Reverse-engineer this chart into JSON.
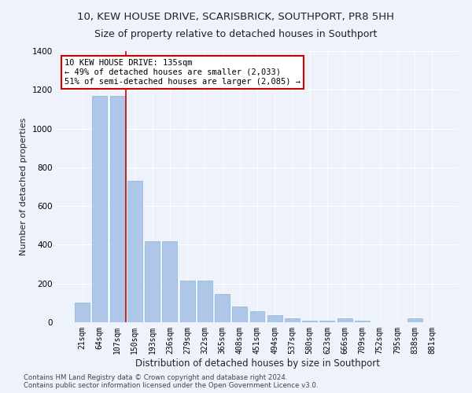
{
  "title_line1": "10, KEW HOUSE DRIVE, SCARISBRICK, SOUTHPORT, PR8 5HH",
  "title_line2": "Size of property relative to detached houses in Southport",
  "xlabel": "Distribution of detached houses by size in Southport",
  "ylabel": "Number of detached properties",
  "bin_labels": [
    "21sqm",
    "64sqm",
    "107sqm",
    "150sqm",
    "193sqm",
    "236sqm",
    "279sqm",
    "322sqm",
    "365sqm",
    "408sqm",
    "451sqm",
    "494sqm",
    "537sqm",
    "580sqm",
    "623sqm",
    "666sqm",
    "709sqm",
    "752sqm",
    "795sqm",
    "838sqm",
    "881sqm"
  ],
  "bar_heights": [
    100,
    1170,
    1170,
    730,
    420,
    420,
    215,
    215,
    145,
    80,
    55,
    35,
    20,
    10,
    10,
    20,
    10,
    0,
    0,
    20,
    0
  ],
  "bar_color": "#aec6e8",
  "bar_edge_color": "#8ab4d8",
  "annotation_box_text": "10 KEW HOUSE DRIVE: 135sqm\n← 49% of detached houses are smaller (2,033)\n51% of semi-detached houses are larger (2,085) →",
  "annotation_box_color": "#ffffff",
  "annotation_box_edge_color": "#cc0000",
  "vline_x_index": 2.5,
  "vline_color": "#cc0000",
  "ylim": [
    0,
    1400
  ],
  "yticks": [
    0,
    200,
    400,
    600,
    800,
    1000,
    1200,
    1400
  ],
  "bg_color": "#eef2fa",
  "footer_text": "Contains HM Land Registry data © Crown copyright and database right 2024.\nContains public sector information licensed under the Open Government Licence v3.0.",
  "title_fontsize": 9.5,
  "subtitle_fontsize": 9,
  "ann_fontsize": 7.5,
  "tick_fontsize": 7,
  "ylabel_fontsize": 8,
  "xlabel_fontsize": 8.5
}
